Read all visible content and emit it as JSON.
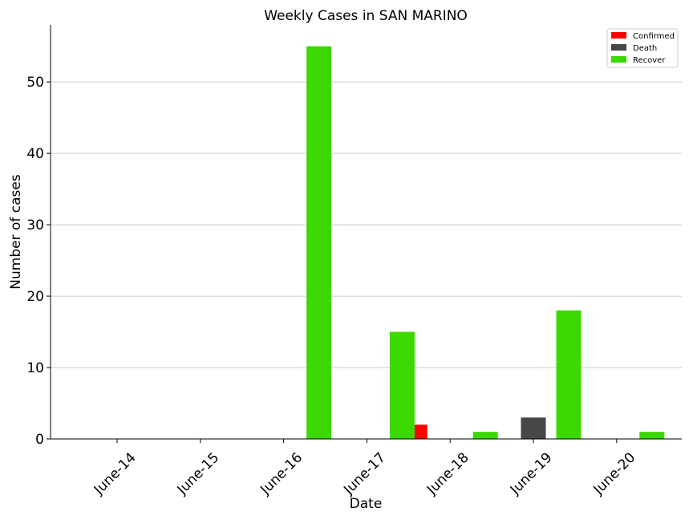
{
  "chart_data": {
    "type": "bar",
    "title": "Weekly Cases in SAN MARINO",
    "xlabel": "Date",
    "ylabel": "Number of cases",
    "categories": [
      "June-14",
      "June-15",
      "June-16",
      "June-17",
      "June-18",
      "June-19",
      "June-20"
    ],
    "series": [
      {
        "name": "Confirmed",
        "color": "#ff0000",
        "values": [
          0,
          0,
          0,
          0,
          2,
          0,
          0
        ]
      },
      {
        "name": "Death",
        "color": "#474747",
        "values": [
          0,
          0,
          0,
          0,
          0,
          3,
          0
        ]
      },
      {
        "name": "Recover",
        "color": "#3dd800",
        "values": [
          0,
          0,
          55,
          15,
          1,
          18,
          1
        ]
      }
    ],
    "ylim": [
      0,
      58
    ],
    "yticks": [
      0,
      10,
      20,
      30,
      40,
      50
    ],
    "grid": "horizontal",
    "legend_position": "top-right"
  }
}
